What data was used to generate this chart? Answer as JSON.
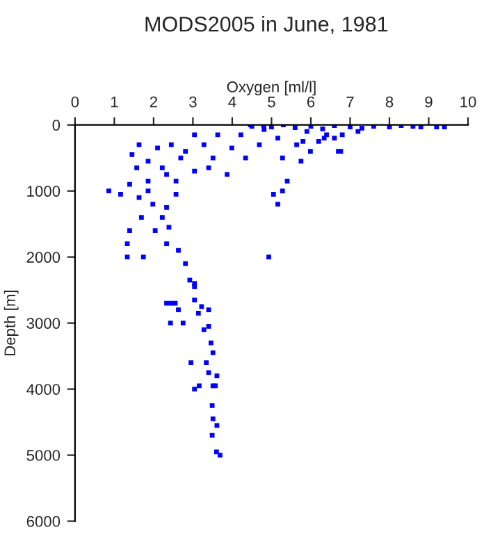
{
  "chart_data": {
    "type": "scatter",
    "title": "MODS2005 in June, 1981",
    "xlabel": "Oxygen [ml/l]",
    "ylabel": "Depth [m]",
    "xlim": [
      0,
      10
    ],
    "xticks": [
      0,
      1,
      2,
      3,
      4,
      5,
      6,
      7,
      8,
      9,
      10
    ],
    "ylim": [
      6000,
      0
    ],
    "yticks": [
      0,
      1000,
      2000,
      3000,
      4000,
      5000,
      6000
    ],
    "grid": false,
    "marker": "square",
    "series": [
      {
        "color": "#0000ff",
        "x": [
          4.5,
          4.8,
          5.0,
          5.3,
          5.6,
          6.0,
          6.3,
          6.6,
          7.0,
          7.3,
          7.6,
          8.0,
          8.3,
          8.6,
          8.8,
          9.2,
          9.4,
          5.9,
          6.4,
          6.8,
          7.2,
          5.8,
          6.2,
          6.6,
          6.76,
          4.46,
          4.81,
          5.16,
          4.69,
          4.22,
          3.99,
          3.63,
          3.28,
          3.04,
          3.4,
          3.04,
          2.69,
          2.45,
          2.1,
          1.63,
          1.45,
          1.86,
          1.57,
          2.33,
          2.57,
          1.86,
          1.39,
          0.86,
          1.16,
          1.63,
          1.98,
          2.33,
          1.69,
          2.04,
          2.39,
          1.39,
          1.33,
          1.33,
          1.74,
          2.33,
          2.63,
          2.81,
          3.04,
          2.45,
          5.28,
          5.4,
          5.28,
          5.05,
          5.16,
          4.93,
          5.75,
          5.99,
          5.64,
          6.7,
          6.34,
          3.51,
          3.87,
          4.34,
          2.81,
          2.22,
          1.86,
          2.57,
          2.22,
          2.92,
          3.04,
          3.04,
          2.33,
          2.55,
          2.63,
          3.22,
          3.4,
          3.14,
          2.43,
          2.75,
          3.28,
          3.4,
          3.46,
          3.51,
          2.95,
          3.34,
          3.4,
          3.61,
          3.04,
          3.16,
          3.51,
          3.57,
          3.49,
          3.51,
          3.61,
          3.49,
          3.6,
          3.69
        ],
        "values": [
          20,
          10,
          30,
          0,
          40,
          20,
          60,
          10,
          30,
          50,
          20,
          30,
          10,
          20,
          30,
          30,
          30,
          100,
          150,
          150,
          100,
          250,
          250,
          200,
          400,
          0,
          70,
          200,
          300,
          150,
          350,
          150,
          300,
          150,
          650,
          700,
          500,
          300,
          350,
          300,
          450,
          550,
          650,
          750,
          850,
          850,
          900,
          1000,
          1050,
          1100,
          1200,
          1250,
          1400,
          1600,
          1550,
          1600,
          1800,
          2000,
          2000,
          1800,
          1900,
          2100,
          2400,
          2700,
          500,
          850,
          1000,
          1050,
          1200,
          2000,
          550,
          400,
          300,
          400,
          200,
          500,
          750,
          500,
          400,
          650,
          1000,
          1050,
          1400,
          2350,
          2450,
          2650,
          2700,
          2700,
          2800,
          2750,
          2800,
          2850,
          3000,
          3000,
          3100,
          3050,
          3300,
          3450,
          3600,
          3600,
          3750,
          3800,
          4000,
          3950,
          3950,
          3950,
          4250,
          4450,
          4550,
          4700,
          4950,
          5000
        ]
      }
    ]
  }
}
